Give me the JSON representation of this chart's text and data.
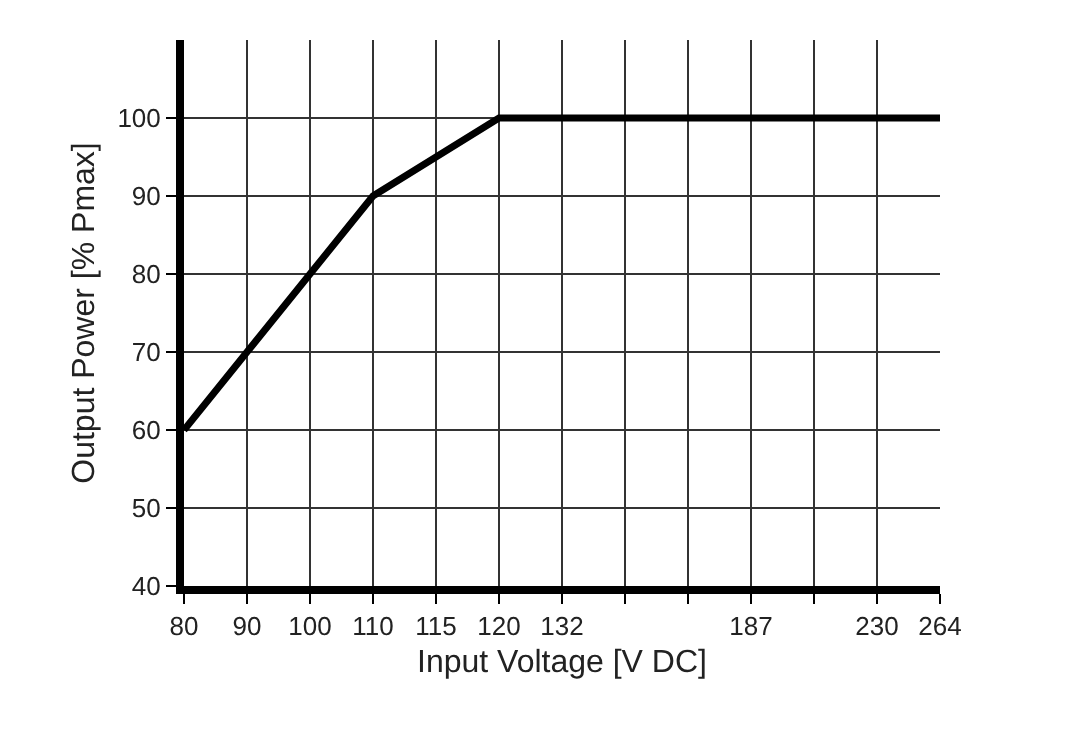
{
  "chart_data": {
    "type": "line",
    "xlabel": "Input Voltage [V DC]",
    "ylabel": "Output Power [% Pmax]",
    "categories": [
      "80",
      "90",
      "100",
      "110",
      "115",
      "120",
      "132",
      null,
      null,
      "187",
      null,
      "230",
      "264"
    ],
    "series": [
      {
        "color": "#000000",
        "values": [
          60,
          70,
          80,
          90,
          95,
          100,
          100,
          100,
          100,
          100,
          100,
          100,
          100
        ]
      }
    ],
    "ylim": [
      40,
      110
    ],
    "yticks": [
      40,
      50,
      60,
      70,
      80,
      90,
      100
    ],
    "grid": true,
    "marker": "none",
    "line_style": "solid"
  }
}
